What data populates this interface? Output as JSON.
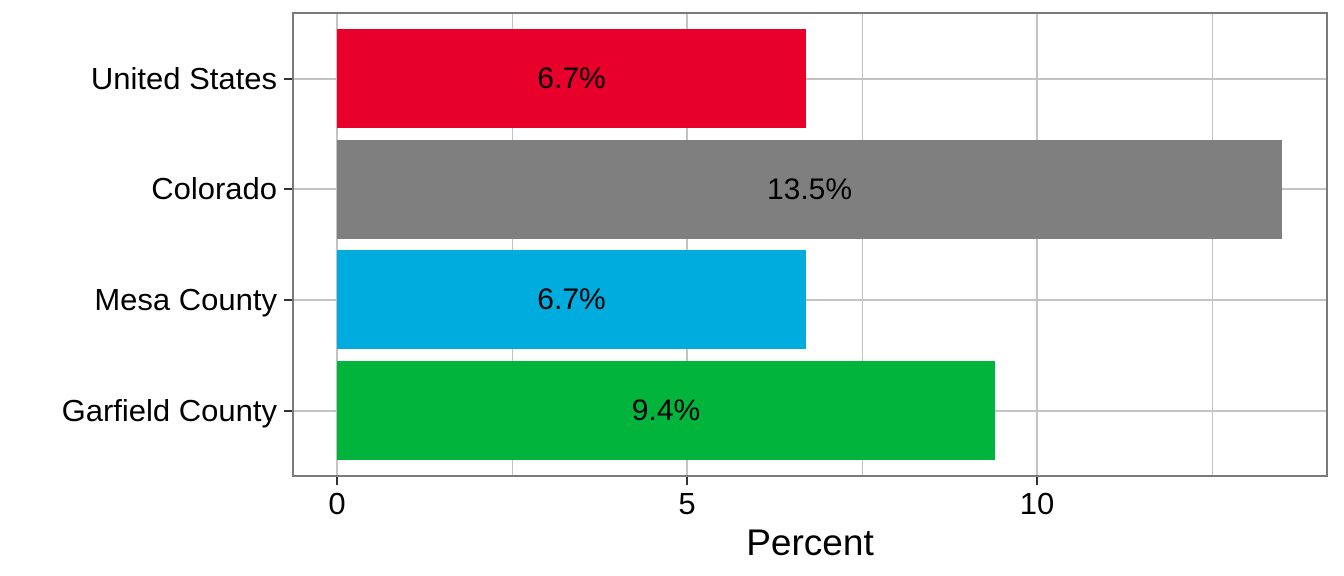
{
  "chart_data": {
    "type": "bar",
    "orientation": "horizontal",
    "title": "",
    "xlabel": "Percent",
    "ylabel": "",
    "categories": [
      "United States",
      "Colorado",
      "Mesa County",
      "Garfield County"
    ],
    "values": [
      6.7,
      13.5,
      6.7,
      9.4
    ],
    "labels": [
      "6.7%",
      "13.5%",
      "6.7%",
      "9.4%"
    ],
    "bar_colors": [
      "#E8002B",
      "#7F7F7F",
      "#00ABDE",
      "#00B43C"
    ],
    "x_major_ticks": [
      0,
      5,
      10
    ],
    "x_tick_labels": [
      "0",
      "5",
      "10"
    ],
    "x_minor_gridlines": [
      2.5,
      7.5,
      12.5
    ],
    "xlim": [
      -0.65,
      14.15
    ],
    "grid": "on",
    "legend": "none",
    "colors": {
      "background": "#FFFFFF",
      "panel_border": "#7A7A7A",
      "gridline": "#C3C3C3",
      "tick_mark": "#333333",
      "text": "#000000"
    }
  }
}
